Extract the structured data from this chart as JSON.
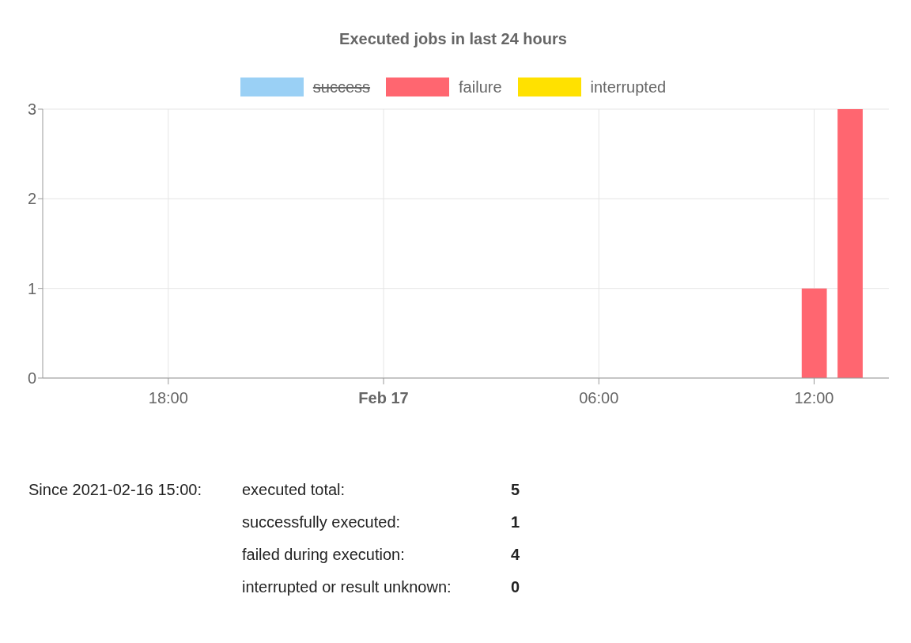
{
  "chart_data": {
    "type": "bar",
    "title": "Executed jobs in last 24 hours",
    "x": [
      "2021-02-17T12:00",
      "2021-02-17T13:00"
    ],
    "series": [
      {
        "name": "success",
        "color": "#9ad0f5",
        "values": [
          null,
          null
        ]
      },
      {
        "name": "failure",
        "color": "#ff6670",
        "values": [
          1,
          3
        ]
      },
      {
        "name": "interrupted",
        "color": "#ffe100",
        "values": [
          0,
          0
        ]
      }
    ],
    "stacked": true,
    "xlim": [
      "2021-02-16T14:30",
      "2021-02-17T14:05"
    ],
    "xticks": [
      {
        "value": "2021-02-16T18:00",
        "label": "18:00"
      },
      {
        "value": "2021-02-17T00:00",
        "label": "Feb 17"
      },
      {
        "value": "2021-02-17T06:00",
        "label": "06:00"
      },
      {
        "value": "2021-02-17T12:00",
        "label": "12:00"
      }
    ],
    "ylim": [
      0,
      3
    ],
    "yticks": [
      0,
      1,
      2,
      3
    ],
    "grid": true,
    "legend": "top",
    "annotations": [
      "Since 2021-02-16 15:00:",
      "executed total:",
      "5",
      "successfully executed:",
      "1",
      "failed during execution:",
      "4",
      "interrupted or result unknown:",
      "0"
    ]
  }
}
